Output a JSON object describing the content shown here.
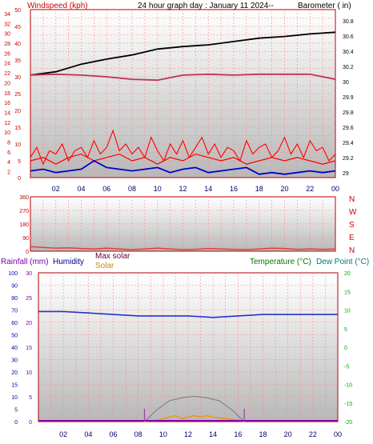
{
  "header": {
    "title": "24 hour graph day : January 11 2024--",
    "windspeed_label": "Windspeed (kph)",
    "barometer_label": "Barometer ( in)"
  },
  "direction_labels": [
    "N",
    "W",
    "S",
    "E",
    "N"
  ],
  "bottom_labels": {
    "rainfall": "Rainfall (mm)",
    "humidity": "Humidity",
    "max_solar": "Max solar",
    "solar": "Solar",
    "temperature": "Temperature (°C)",
    "dewpoint": "Dew Point (°C)"
  },
  "colors": {
    "wind": "#ff0000",
    "gust": "#ff0000",
    "avg_wind": "#0000cc",
    "pressure": "#000000",
    "temperature": "#bb3355",
    "direction": "#ee3333",
    "humidity": "#2233cc",
    "solar": "#ff8c00",
    "max_solar": "#888888",
    "rain": "#8800aa",
    "temp_axis": "#00aa00",
    "grid": "#ff8888"
  },
  "chart_data": [
    {
      "id": "wind_baro",
      "type": "line",
      "x_ticks": [
        "02",
        "04",
        "06",
        "08",
        "10",
        "12",
        "14",
        "16",
        "18",
        "20",
        "22",
        "00"
      ],
      "y_left_ticks": [
        "50",
        "45",
        "40",
        "35",
        "30",
        "25",
        "20",
        "15",
        "10",
        "5",
        "0"
      ],
      "y_left_ticks2": [
        "34",
        "32",
        "30",
        "28",
        "26",
        "24",
        "22",
        "20",
        "18",
        "16",
        "14",
        "12",
        "10",
        "8",
        "6",
        "4",
        "2"
      ],
      "y_right_ticks": [
        "30.8",
        "30.6",
        "30.4",
        "30.2",
        "30",
        "29.9",
        "29.8",
        "29.6",
        "29.4",
        "29.2",
        "29"
      ],
      "ylim_left": [
        0,
        50
      ],
      "ylim_right": [
        28.9,
        30.9
      ],
      "series": [
        {
          "key": "pressure",
          "x": [
            0,
            2,
            4,
            6,
            8,
            10,
            12,
            14,
            16,
            18,
            20,
            22,
            24
          ],
          "values": [
            30.12,
            30.16,
            30.25,
            30.31,
            30.36,
            30.43,
            30.46,
            30.48,
            30.52,
            30.56,
            30.58,
            30.61,
            30.63
          ]
        },
        {
          "key": "temperature_trace",
          "x": [
            0,
            2,
            4,
            6,
            8,
            10,
            12,
            14,
            16,
            18,
            20,
            22,
            24
          ],
          "values": [
            30.12,
            30.13,
            30.12,
            30.1,
            30.07,
            30.06,
            30.12,
            30.13,
            30.12,
            30.13,
            30.13,
            30.13,
            30.07
          ]
        },
        {
          "key": "gust",
          "x": [
            0,
            0.5,
            1,
            1.5,
            2,
            2.5,
            3,
            3.5,
            4,
            4.5,
            5,
            5.5,
            6,
            6.5,
            7,
            7.5,
            8,
            8.5,
            9,
            9.5,
            10,
            10.5,
            11,
            11.5,
            12,
            12.5,
            13,
            13.5,
            14,
            14.5,
            15,
            15.5,
            16,
            16.5,
            17,
            17.5,
            18,
            18.5,
            19,
            19.5,
            20,
            20.5,
            21,
            21.5,
            22,
            22.5,
            23,
            23.5,
            24
          ],
          "values": [
            6,
            9,
            4,
            8,
            7,
            10,
            5,
            8,
            9,
            6,
            11,
            7,
            9,
            14,
            8,
            10,
            7,
            9,
            6,
            12,
            8,
            5,
            10,
            7,
            11,
            6,
            9,
            12,
            7,
            10,
            6,
            9,
            8,
            5,
            11,
            7,
            9,
            10,
            6,
            8,
            12,
            7,
            10,
            6,
            11,
            8,
            9,
            5,
            7
          ]
        },
        {
          "key": "wind",
          "x": [
            0,
            1,
            2,
            3,
            4,
            5,
            6,
            7,
            8,
            9,
            10,
            11,
            12,
            13,
            14,
            15,
            16,
            17,
            18,
            19,
            20,
            21,
            22,
            23,
            24
          ],
          "values": [
            5,
            6,
            4,
            6,
            7,
            5,
            6,
            7,
            5,
            6,
            4,
            6,
            5,
            7,
            6,
            5,
            6,
            4,
            5,
            6,
            5,
            6,
            5,
            4,
            5
          ]
        },
        {
          "key": "avg_wind",
          "x": [
            0,
            1,
            2,
            3,
            4,
            5,
            6,
            7,
            8,
            9,
            10,
            11,
            12,
            13,
            14,
            15,
            16,
            17,
            18,
            19,
            20,
            21,
            22,
            23,
            24
          ],
          "values": [
            2,
            2.5,
            1.5,
            2,
            2.5,
            5,
            3,
            2.5,
            2,
            2.5,
            3,
            1.5,
            2.5,
            3,
            1.5,
            2,
            2.5,
            3,
            1,
            1.5,
            1,
            1.5,
            2,
            1.5,
            2
          ]
        }
      ]
    },
    {
      "id": "direction",
      "type": "line",
      "y_ticks": [
        "360",
        "270",
        "180",
        "90",
        "0"
      ],
      "ylim": [
        0,
        360
      ],
      "series": [
        {
          "key": "direction",
          "x": [
            0,
            1,
            2,
            3,
            4,
            5,
            6,
            7,
            8,
            9,
            10,
            11,
            12,
            13,
            14,
            15,
            16,
            17,
            18,
            19,
            20,
            21,
            22,
            23,
            24
          ],
          "values": [
            30,
            25,
            20,
            22,
            18,
            15,
            20,
            15,
            10,
            15,
            20,
            15,
            10,
            12,
            18,
            15,
            12,
            10,
            15,
            20,
            18,
            12,
            15,
            12,
            15
          ]
        }
      ]
    },
    {
      "id": "humidity_solar",
      "type": "line",
      "y_left_ticks": [
        "100",
        "90",
        "80",
        "70",
        "60",
        "50",
        "40",
        "30",
        "20",
        "15",
        "10",
        "5",
        "0"
      ],
      "y_rain_ticks": [
        "30",
        "25",
        "20",
        "15",
        "10",
        "5",
        "0"
      ],
      "y_right_ticks": [
        "20",
        "15",
        "10",
        "5",
        "0",
        "-5",
        "-10",
        "-15",
        "-20"
      ],
      "ylim_humidity": [
        0,
        100
      ],
      "series": [
        {
          "key": "humidity",
          "x": [
            0,
            2,
            4,
            6,
            8,
            10,
            12,
            14,
            16,
            18,
            20,
            22,
            24
          ],
          "values": [
            74,
            74,
            73,
            72,
            71,
            71,
            71,
            70,
            71,
            72,
            72,
            72,
            72
          ]
        },
        {
          "key": "max_solar",
          "x": [
            8.5,
            9.5,
            10.5,
            11.5,
            12.5,
            13.5,
            14.5,
            15.5,
            16.5
          ],
          "values": [
            0,
            8,
            14,
            16,
            17,
            16,
            14,
            8,
            0
          ]
        },
        {
          "key": "solar",
          "x": [
            8.5,
            9.5,
            10.5,
            11,
            11.5,
            12,
            12.5,
            13,
            13.5,
            14,
            15,
            16,
            16.5
          ],
          "values": [
            0,
            1,
            3,
            4,
            2,
            3,
            4,
            3,
            4,
            3,
            2,
            1,
            0
          ]
        }
      ]
    }
  ]
}
